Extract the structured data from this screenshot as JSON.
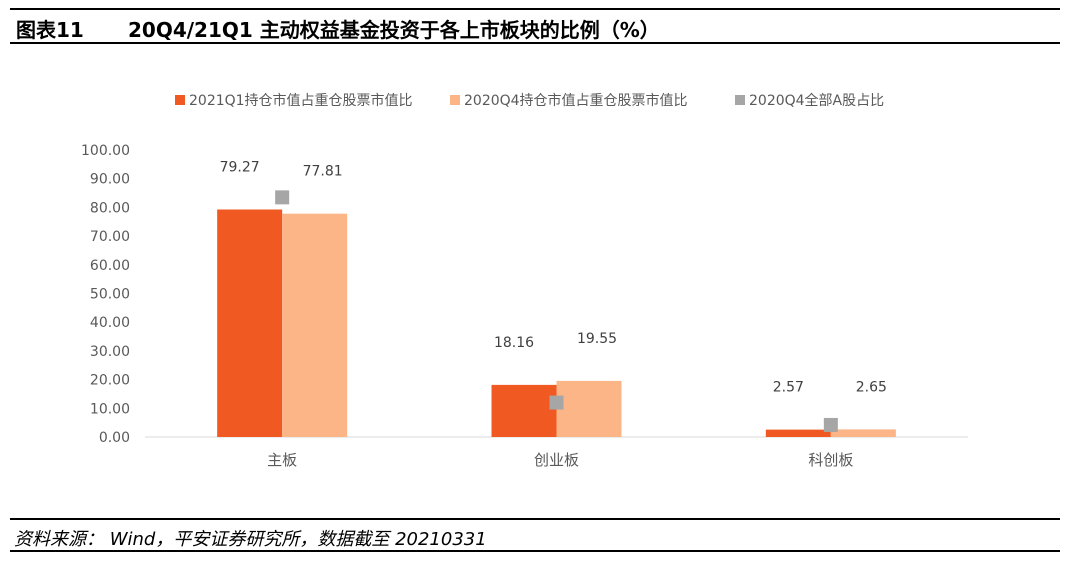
{
  "header": {
    "label": "图表11",
    "title": "20Q4/21Q1 主动权益基金投资于各上市板块的比例（%）"
  },
  "chart_data": {
    "type": "bar",
    "categories": [
      "主板",
      "创业板",
      "科创板"
    ],
    "series": [
      {
        "name": "2021Q1持仓市值占重仓股票市值比",
        "kind": "bar",
        "color": "#F05A22",
        "values": [
          79.27,
          18.16,
          2.57
        ],
        "labels": [
          "79.27",
          "18.16",
          "2.57"
        ]
      },
      {
        "name": "2020Q4持仓市值占重仓股票市值比",
        "kind": "bar",
        "color": "#FBB587",
        "values": [
          77.81,
          19.55,
          2.65
        ],
        "labels": [
          "77.81",
          "19.55",
          "2.65"
        ]
      },
      {
        "name": "2020Q4全部A股占比",
        "kind": "marker",
        "color": "#A6A6A6",
        "values": [
          83.5,
          12.0,
          4.2
        ]
      }
    ],
    "ylim": [
      0,
      100
    ],
    "yticks": [
      "0.00",
      "10.00",
      "20.00",
      "30.00",
      "40.00",
      "50.00",
      "60.00",
      "70.00",
      "80.00",
      "90.00",
      "100.00"
    ],
    "legend_position": "top",
    "grid": false
  },
  "footer": {
    "source": "资料来源： Wind，平安证券研究所，数据截至 20210331"
  }
}
